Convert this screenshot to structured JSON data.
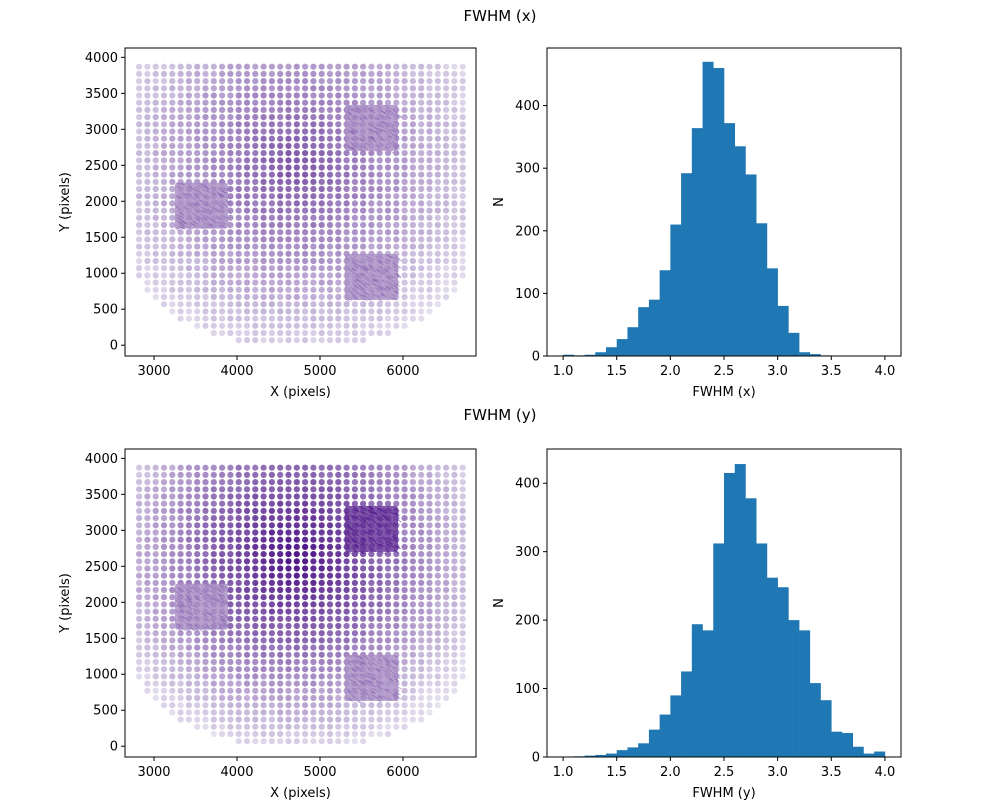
{
  "figure": {
    "titles": [
      "FWHM (x)",
      "FWHM (y)"
    ]
  },
  "colors": {
    "hist_fill": "#1f77b4",
    "scatter_low": "#ebe9f3",
    "scatter_high": "#3f007d",
    "axis": "#000000",
    "background": "#ffffff"
  },
  "chart_data": [
    {
      "type": "scatter",
      "panel": "FWHM (x) position map",
      "xlabel": "X (pixels)",
      "ylabel": "Y (pixels)",
      "xlim": [
        2650,
        6880
      ],
      "ylim": [
        -150,
        4130
      ],
      "xticks": [
        3000,
        4000,
        5000,
        6000
      ],
      "yticks": [
        0,
        500,
        1000,
        1500,
        2000,
        2500,
        3000,
        3500,
        4000
      ],
      "grid": false,
      "colormap": "Purples",
      "point_grid": {
        "x_start": 2820,
        "x_end": 6720,
        "y_start": 70,
        "y_end": 3910,
        "step": 100
      },
      "peak_color_at": [
        4700,
        2500
      ],
      "peak_level": 0.62,
      "insets": [
        {
          "x": [
            3250,
            3890
          ],
          "y": [
            1620,
            2260
          ]
        },
        {
          "x": [
            5300,
            5940
          ],
          "y": [
            2700,
            3340
          ]
        },
        {
          "x": [
            5300,
            5940
          ],
          "y": [
            630,
            1270
          ]
        }
      ]
    },
    {
      "type": "bar",
      "panel": "FWHM (x) histogram",
      "xlabel": "FWHM (x)",
      "ylabel": "N",
      "xlim": [
        0.85,
        4.15
      ],
      "ylim": [
        0,
        492
      ],
      "xticks": [
        1.0,
        1.5,
        2.0,
        2.5,
        3.0,
        3.5,
        4.0
      ],
      "yticks": [
        0,
        100,
        200,
        300,
        400
      ],
      "bin_edges_start": 1.0,
      "bin_width": 0.1,
      "values": [
        2,
        1,
        2,
        6,
        14,
        27,
        46,
        78,
        90,
        137,
        210,
        292,
        364,
        470,
        460,
        372,
        335,
        290,
        212,
        140,
        80,
        37,
        6,
        3,
        1,
        0,
        0,
        0,
        0,
        0
      ]
    },
    {
      "type": "scatter",
      "panel": "FWHM (y) position map",
      "xlabel": "X (pixels)",
      "ylabel": "Y (pixels)",
      "xlim": [
        2650,
        6880
      ],
      "ylim": [
        -150,
        4130
      ],
      "xticks": [
        3000,
        4000,
        5000,
        6000
      ],
      "yticks": [
        0,
        500,
        1000,
        1500,
        2000,
        2500,
        3000,
        3500,
        4000
      ],
      "grid": false,
      "colormap": "Purples",
      "point_grid": {
        "x_start": 2820,
        "x_end": 6720,
        "y_start": 70,
        "y_end": 3910,
        "step": 100
      },
      "peak_color_at": [
        4700,
        2650
      ],
      "peak_level": 0.95,
      "insets": [
        {
          "x": [
            3250,
            3890
          ],
          "y": [
            1620,
            2260
          ]
        },
        {
          "x": [
            5300,
            5940
          ],
          "y": [
            2700,
            3340
          ]
        },
        {
          "x": [
            5300,
            5940
          ],
          "y": [
            630,
            1270
          ]
        }
      ]
    },
    {
      "type": "bar",
      "panel": "FWHM (y) histogram",
      "xlabel": "FWHM (y)",
      "ylabel": "N",
      "xlim": [
        0.85,
        4.15
      ],
      "ylim": [
        0,
        450
      ],
      "xticks": [
        1.0,
        1.5,
        2.0,
        2.5,
        3.0,
        3.5,
        4.0
      ],
      "yticks": [
        0,
        100,
        200,
        300,
        400
      ],
      "bin_edges_start": 1.0,
      "bin_width": 0.1,
      "values": [
        0,
        1,
        2,
        3,
        5,
        10,
        14,
        20,
        40,
        62,
        90,
        125,
        194,
        185,
        312,
        415,
        428,
        378,
        312,
        262,
        248,
        200,
        185,
        108,
        83,
        37,
        35,
        15,
        5,
        8
      ]
    }
  ]
}
